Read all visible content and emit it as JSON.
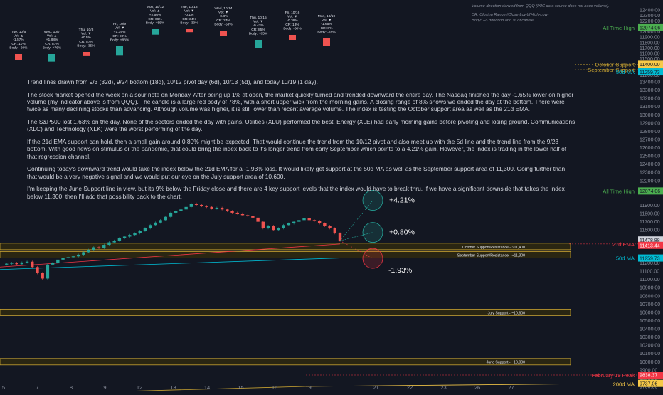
{
  "legend_notes": [
    "Volume direction derived from QQQ (IXIC data source does not have volume).",
    "CR: Closing Range (Close-Low)/(High-Low)",
    "Body: +/- direction and % of candle"
  ],
  "commentary": [
    "Trend lines drawn from 9/3 (32d), 9/24 bottom (18d), 10/12 pivot day (6d), 10/13 (5d), and today 10/19 (1 day).",
    "The stock market opened the week on a sour note on Monday. After being up 1% at open, the market quickly turned and trended downward the entire day. The Nasdaq finished the day -1.65% lower on higher volume (my indicator above is from QQQ). The candle is a large red body of 78%, with a short upper wick from the morning gains. A closing range of 8% shows we ended the day at the bottom. There were twice as many declining stocks than advancing. Although volume was higher, it is still lower than recent average volume. The index is testing the October support area as well as the 21d EMA.",
    "The S&P500 lost 1.63% on the day. None of the sectors ended the day with gains. Utilities (XLU) performed the best. Energy (XLE) had early morning gains before pivoting and losing ground.  Communications (XLC) and Technology (XLK) were the worst performing of the day.",
    "If the 21d EMA support can hold, then a small gain around 0.80% might be expected. That would continue the trend from the 10/12 pivot and also meet up with the 5d line and the trend line from the 9/23 bottom. With good news on stimulus or the pandemic, that could bring the index back to it's longer trend from early September which points to a 4.21% gain. However, the index is trading in the lower half of that regression channel.",
    "Continuing today's downward trend would take the index below the 21d EMA for a -1.93% loss. It would likely get support at the 50d MA as well as the September support area of 11,300. Going further than that would be a very negative signal and we would put our eye on the July support area of 10,600.",
    "I'm keeping the June Support line in view, but its 9% below the Friday close and there are 4 key support levels that the index would have to break thru.  If we have a significant downside that takes the index below 11,300, then I'll add that possibility back to the chart."
  ],
  "chart_data": [
    {
      "type": "bar",
      "title": "",
      "panel": "daily candle stats",
      "series": [
        {
          "day": "Tue, 10/6",
          "vol": "Vol: ▲",
          "chg": "-1.57%",
          "cr": "CR: 11%",
          "body": "Body: -60%",
          "dir": "down"
        },
        {
          "day": "Wed, 10/7",
          "vol": "Vol: ▲",
          "chg": "+1.88%",
          "cr": "CR: 87%",
          "body": "Body: +76%",
          "dir": "up"
        },
        {
          "day": "Thu, 10/8",
          "vol": "Vol: ▼",
          "chg": "+0.5%",
          "cr": "CR: 57%",
          "body": "Body: -35%",
          "dir": "down"
        },
        {
          "day": "Fri, 10/9",
          "vol": "Vol: ▼",
          "chg": "+1.39%",
          "cr": "CR: 99%",
          "body": "Body: +88%",
          "dir": "up"
        },
        {
          "day": "Mon, 10/12",
          "vol": "Vol: ▲",
          "chg": "+2.56%",
          "cr": "CR: 66%",
          "body": "Body: +55%",
          "dir": "up"
        },
        {
          "day": "Tue, 10/13",
          "vol": "Vol: ▼",
          "chg": "-0.1%",
          "cr": "CR: 34%",
          "body": "Body: -30%",
          "dir": "down"
        },
        {
          "day": "Wed, 10/14",
          "vol": "Vol: ▼",
          "chg": "-0.8%",
          "cr": "CR: 24%",
          "body": "Body: -53%",
          "dir": "down"
        },
        {
          "day": "Thu, 10/15",
          "vol": "Vol: ▼",
          "chg": "-0.47%",
          "cr": "CR: 85%",
          "body": "Body: +85%",
          "dir": "up"
        },
        {
          "day": "Fri, 10/16",
          "vol": "Vol: ▼",
          "chg": "-0.36%",
          "cr": "CR: 13%",
          "body": "Body: -50%",
          "dir": "down"
        },
        {
          "day": "Mon, 10/19",
          "vol": "Vol: ▼",
          "chg": "-1.65%",
          "cr": "CR: 8%",
          "body": "Body: -78%",
          "dir": "down"
        }
      ],
      "axis_ticks": [
        "12400.00",
        "12300.00",
        "12200.00",
        "12100.00",
        "12000.00",
        "11900.00",
        "11800.00",
        "11700.00",
        "11600.00",
        "11500.00",
        "11400.00",
        "11300.00",
        "11200.00"
      ],
      "ylim": [
        11200,
        12430
      ],
      "levels": [
        {
          "name": "All Time High",
          "value": 12074.06,
          "label": "12074.06"
        },
        {
          "name": "October Support",
          "value": 11400,
          "label": "11400.00"
        },
        {
          "name": "September Support",
          "value": 11300,
          "label": "11300.00"
        },
        {
          "name": "50d MA",
          "value": 11259.73,
          "label": "11259.73"
        }
      ]
    },
    {
      "type": "line",
      "title": "",
      "panel": "price chart",
      "x_ticks": [
        "5",
        "7",
        "8",
        "9",
        "12",
        "13",
        "14",
        "15",
        "16",
        "19",
        "21",
        "22",
        "23",
        "26",
        "27"
      ],
      "axis_ticks": [
        "13400.00",
        "13300.00",
        "13200.00",
        "13100.00",
        "13000.00",
        "12900.00",
        "12800.00",
        "12700.00",
        "12600.00",
        "12500.00",
        "12400.00",
        "12300.00",
        "12200.00",
        "11900.00",
        "11800.00",
        "11700.00",
        "11600.00",
        "11500.00",
        "11200.00",
        "11100.00",
        "11000.00",
        "10900.00",
        "10800.00",
        "10700.00",
        "10600.00",
        "10500.00",
        "10400.00",
        "10300.00",
        "10200.00",
        "10100.00",
        "10000.00",
        "9900.00",
        "9800.00",
        "9700.00"
      ],
      "ylim": [
        9650,
        13450
      ],
      "series": [
        {
          "name": "Nasdaq Composite",
          "values": [
            11180,
            11190,
            11200,
            11185,
            11205,
            11215,
            11150,
            11075,
            11010,
            11180,
            11200,
            11240,
            11260,
            11270,
            11280,
            11300,
            11330,
            11360,
            11390,
            11380,
            11420,
            11450,
            11470,
            11500,
            11520,
            11540,
            11560,
            11590,
            11620,
            11660,
            11690,
            11720,
            11760,
            11810,
            11830,
            11850,
            11880,
            11920,
            11905,
            11890,
            11880,
            11860,
            11870,
            11850,
            11830,
            11810,
            11800,
            11780,
            11770,
            11750,
            11700,
            11620,
            11650,
            11600,
            11620,
            11660,
            11680,
            11700,
            11720,
            11740,
            11720,
            11710,
            11680,
            11650,
            11620,
            11560,
            11470
          ]
        },
        {
          "name": "21d EMA",
          "values": [
            11150,
            11430
          ]
        },
        {
          "name": "50d MA",
          "values": [
            11120,
            11260
          ]
        },
        {
          "name": "200d MA",
          "values": [
            9600,
            9700,
            9730
          ]
        }
      ],
      "levels": [
        {
          "name": "All Time High",
          "value": 12074.06,
          "label": "12074.06"
        },
        {
          "name": "October Support/Resistance - ~11,400",
          "value": 11400
        },
        {
          "name": "September Support/Resistance - ~11,300",
          "value": 11300
        },
        {
          "name": "July Support - ~10,600",
          "value": 10600
        },
        {
          "name": "June Support - ~10,000",
          "value": 10000
        },
        {
          "name": "February 19 Peak",
          "value": 9838.37,
          "label": "9838.37"
        }
      ],
      "price_tags": [
        {
          "value": 11478.88,
          "label": "11478.88",
          "color": "#d1d4dc"
        },
        {
          "value": 11413.44,
          "label": "11413.44",
          "color": "#f23645"
        },
        {
          "value": 11259.73,
          "label": "11259.73",
          "color": "#00bcd4"
        },
        {
          "value": 9737.06,
          "label": "9737.06",
          "color": "#f7c948"
        }
      ],
      "line_labels": {
        "ema": "21d EMA",
        "ma50": "50d MA",
        "ma200": "200d MA",
        "ath": "All Time High",
        "feb": "February 19 Peak"
      },
      "projections": [
        {
          "label": "+4.21%",
          "target": 11960,
          "color": "#26a69a"
        },
        {
          "label": "+0.80%",
          "target": 11570,
          "color": "#26a69a"
        },
        {
          "label": "-1.93%",
          "target": 11255,
          "color": "#f23645"
        }
      ]
    }
  ],
  "colors": {
    "background": "#131722",
    "up": "#26a69a",
    "down": "#ef5350",
    "support_fill": "#2a2612",
    "support_edge": "#c8a332",
    "ath": "#4caf50",
    "tag_text": "#131722"
  }
}
